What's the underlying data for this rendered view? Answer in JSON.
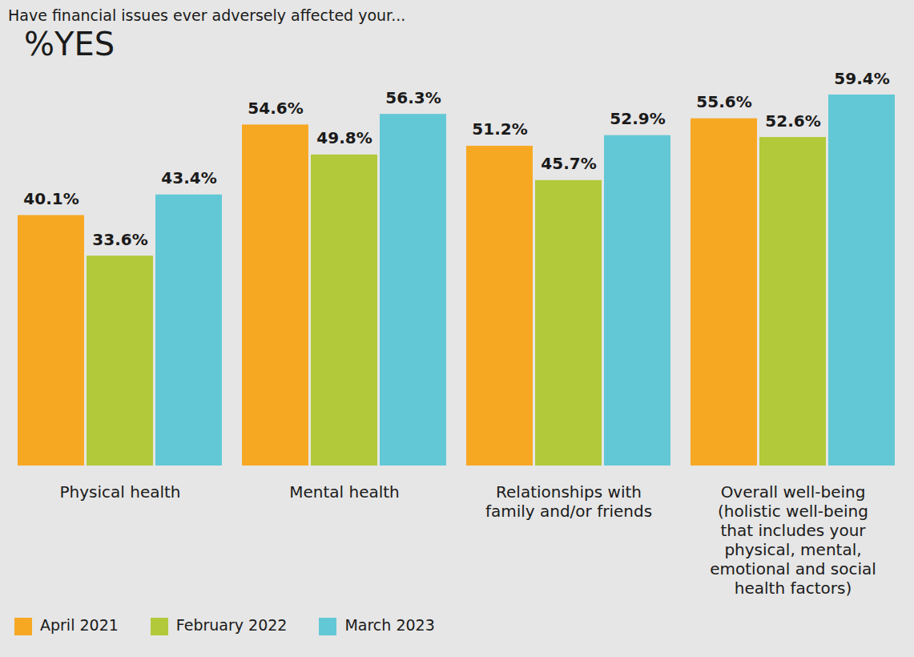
{
  "chart_data": {
    "type": "bar",
    "title": "Have financial issues ever adversely affected your...",
    "subtitle": "%YES",
    "categories": [
      "Physical health",
      "Mental health",
      "Relationships with family and/or friends",
      "Overall well-being (holistic well-being that includes your physical, mental, emotional and social health factors)"
    ],
    "series": [
      {
        "name": "April 2021",
        "color": "#f7a823",
        "values": [
          40.1,
          54.6,
          51.2,
          55.6
        ],
        "value_labels": [
          "40.1%",
          "54.6%",
          "51.2%",
          "55.6%"
        ]
      },
      {
        "name": "February 2022",
        "color": "#b2c93a",
        "values": [
          33.6,
          49.8,
          45.7,
          52.6
        ],
        "value_labels": [
          "33.6%",
          "49.8%",
          "45.7%",
          "52.6%"
        ]
      },
      {
        "name": "March 2023",
        "color": "#63c8d6",
        "values": [
          43.4,
          56.3,
          52.9,
          59.4
        ],
        "value_labels": [
          "43.4%",
          "56.3%",
          "52.9%",
          "59.4%"
        ]
      }
    ],
    "data_labels": true,
    "tick_labels": "x",
    "legend": "bottom"
  }
}
